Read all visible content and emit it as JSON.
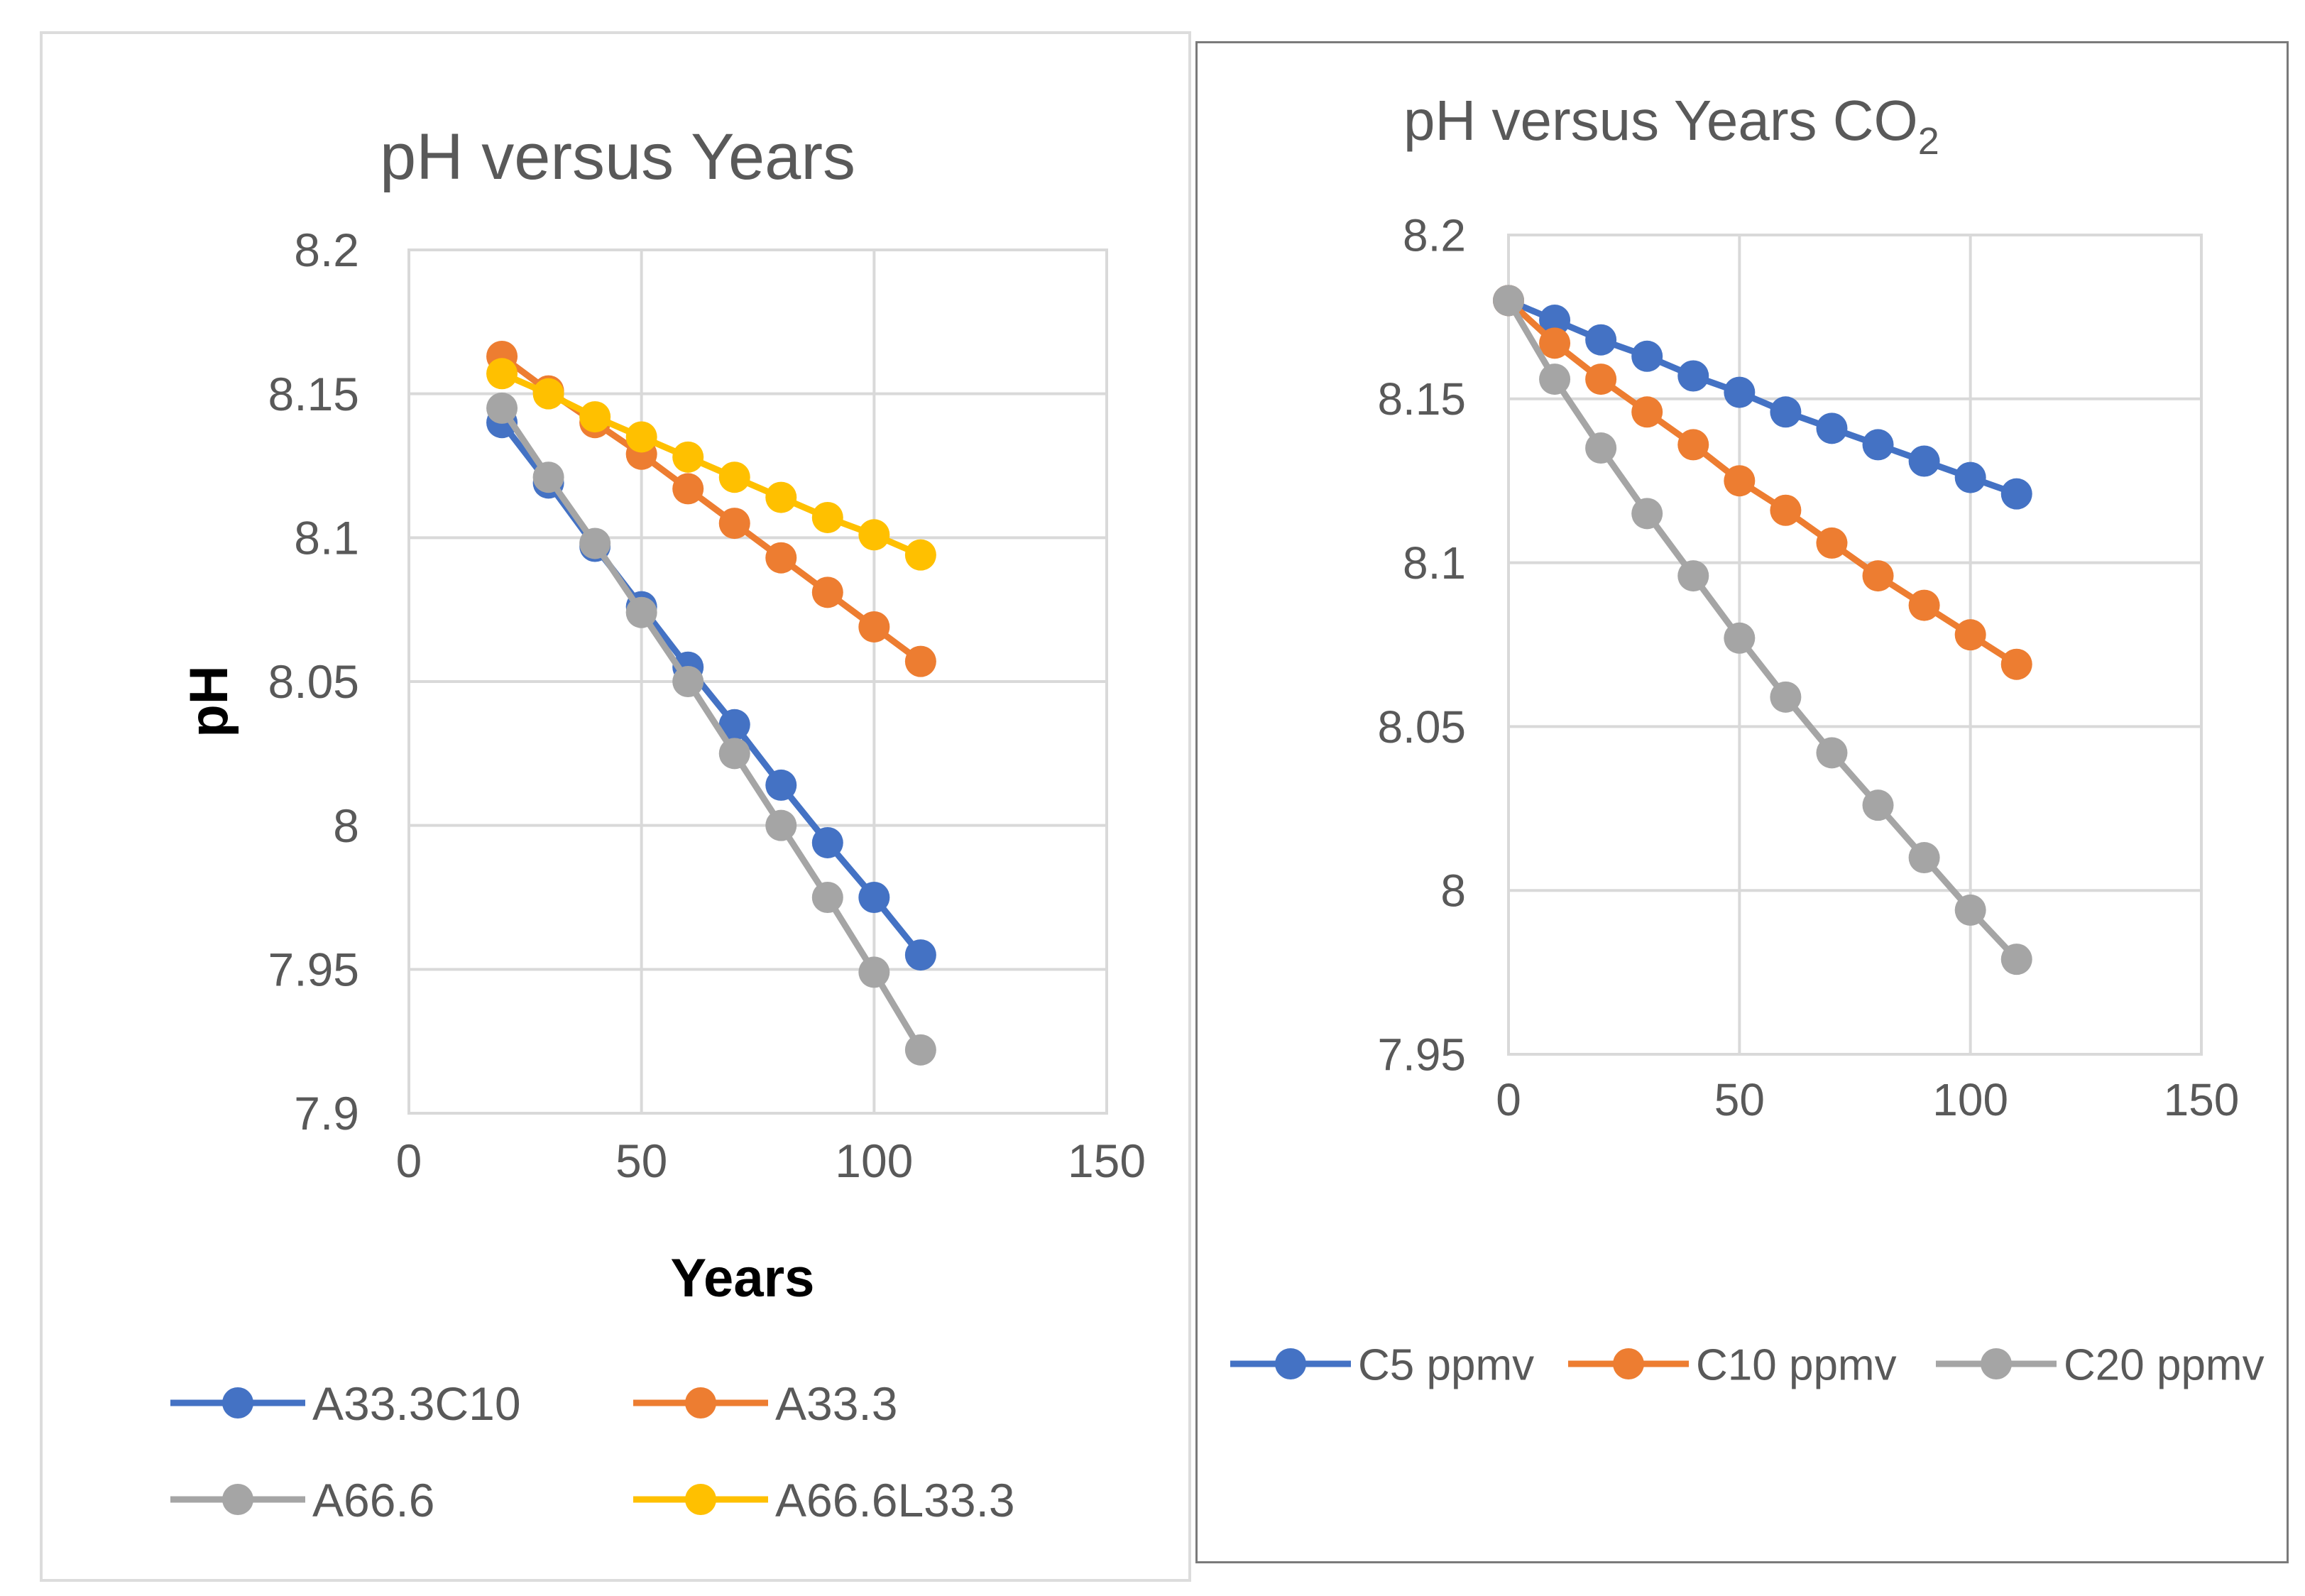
{
  "chart_data": [
    {
      "type": "line",
      "title": "pH versus Years",
      "xlabel": "Years",
      "ylabel": "pH",
      "xlim": [
        0,
        150
      ],
      "ylim": [
        7.9,
        8.2
      ],
      "x_ticks": [
        "0",
        "50",
        "100",
        "150"
      ],
      "y_ticks": [
        "7.9",
        "7.95",
        "8",
        "8.05",
        "8.1",
        "8.15",
        "8.2"
      ],
      "grid": true,
      "legend_position": "bottom",
      "x": [
        20,
        30,
        40,
        50,
        60,
        70,
        80,
        90,
        100,
        110
      ],
      "series": [
        {
          "name": "A33.3C10",
          "color": "#4472C4",
          "values": [
            8.14,
            8.119,
            8.097,
            8.076,
            8.055,
            8.035,
            8.014,
            7.994,
            7.975,
            7.955
          ]
        },
        {
          "name": "A33.3",
          "color": "#ED7D31",
          "values": [
            8.163,
            8.151,
            8.14,
            8.129,
            8.117,
            8.105,
            8.093,
            8.081,
            8.069,
            8.057
          ]
        },
        {
          "name": "A66.6",
          "color": "#A5A5A5",
          "values": [
            8.145,
            8.121,
            8.098,
            8.074,
            8.05,
            8.025,
            8.0,
            7.975,
            7.949,
            7.922
          ]
        },
        {
          "name": "A66.6L33.3",
          "color": "#FFC000",
          "values": [
            8.157,
            8.15,
            8.142,
            8.135,
            8.128,
            8.121,
            8.114,
            8.107,
            8.101,
            8.094
          ]
        }
      ]
    },
    {
      "type": "line",
      "title_main": "pH versus Years CO",
      "title_subscript": "2",
      "xlim": [
        0,
        150
      ],
      "ylim": [
        7.95,
        8.2
      ],
      "x_ticks": [
        "0",
        "50",
        "100",
        "150"
      ],
      "y_ticks": [
        "7.95",
        "8",
        "8.05",
        "8.1",
        "8.15",
        "8.2"
      ],
      "grid": true,
      "legend_position": "bottom",
      "x": [
        0,
        10,
        20,
        30,
        40,
        50,
        60,
        70,
        80,
        90,
        100,
        110
      ],
      "series": [
        {
          "name": "C5 ppmv",
          "color": "#4472C4",
          "values": [
            8.18,
            8.174,
            8.168,
            8.163,
            8.157,
            8.152,
            8.146,
            8.141,
            8.136,
            8.131,
            8.126,
            8.121
          ]
        },
        {
          "name": "C10 ppmv",
          "color": "#ED7D31",
          "values": [
            8.18,
            8.167,
            8.156,
            8.146,
            8.136,
            8.125,
            8.116,
            8.106,
            8.096,
            8.087,
            8.078,
            8.069
          ]
        },
        {
          "name": "C20 ppmv",
          "color": "#A5A5A5",
          "values": [
            8.18,
            8.156,
            8.135,
            8.115,
            8.096,
            8.077,
            8.059,
            8.042,
            8.026,
            8.01,
            7.994,
            7.979
          ]
        }
      ]
    }
  ]
}
